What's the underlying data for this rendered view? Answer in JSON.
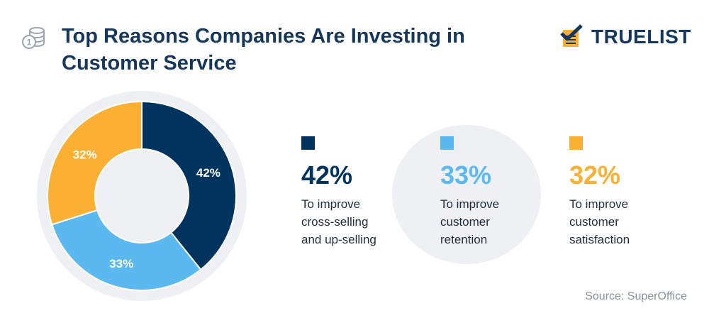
{
  "header": {
    "title": "Top Reasons Companies Are Investing in Customer Service",
    "icon": "coins-icon"
  },
  "brand": {
    "name": "TRUELIST",
    "logo_icon": "checklist-logo-icon"
  },
  "colors": {
    "navy": "#00335e",
    "blue": "#5bb9ef",
    "orange": "#fbb033",
    "title": "#16375c"
  },
  "chart_data": {
    "type": "pie",
    "variant": "donut",
    "categories": [
      "To improve cross-selling and up-selling",
      "To improve customer retention",
      "To improve customer satisfaction"
    ],
    "values": [
      42,
      33,
      32
    ],
    "labels": [
      "42%",
      "33%",
      "32%"
    ],
    "colors": [
      "#00335e",
      "#5bb9ef",
      "#fbb033"
    ],
    "start": "12 o'clock, clockwise"
  },
  "legend": [
    {
      "value": "42%",
      "lines": [
        "To improve",
        "cross-selling",
        "and up-selling"
      ],
      "color": "#00335e"
    },
    {
      "value": "33%",
      "lines": [
        "To improve",
        "customer",
        "retention"
      ],
      "color": "#5bb9ef"
    },
    {
      "value": "32%",
      "lines": [
        "To improve",
        "customer",
        "satisfaction"
      ],
      "color": "#fbb033"
    }
  ],
  "source": "Source: SuperOffice"
}
